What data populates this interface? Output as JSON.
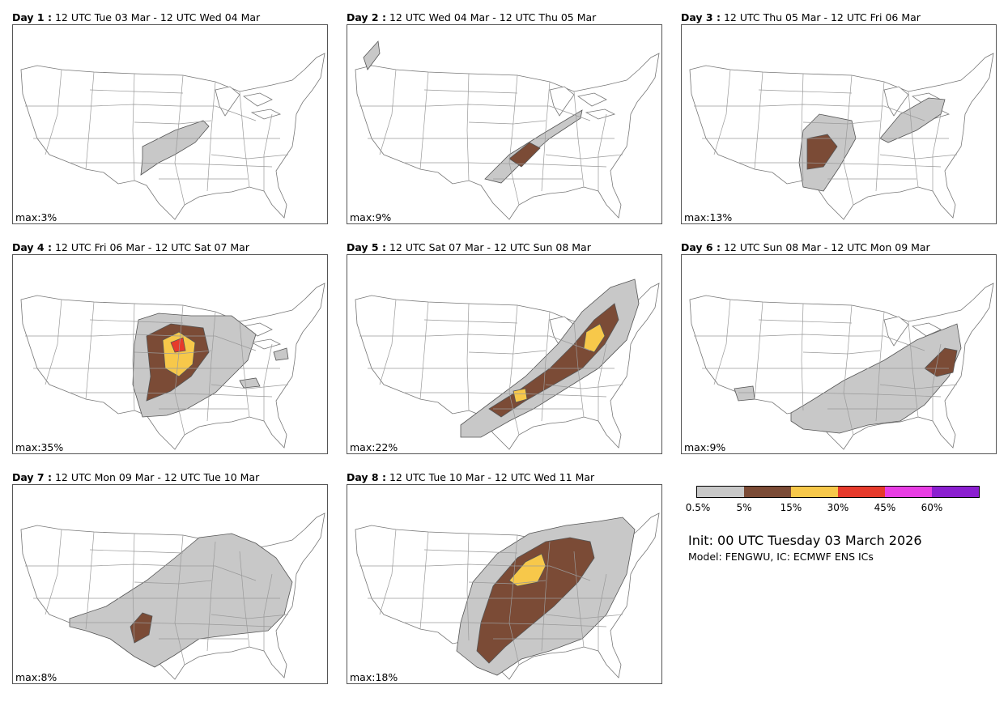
{
  "colors": {
    "c05": "#c8c8c8",
    "c5": "#7b4b36",
    "c15": "#f7c84a",
    "c30": "#e63a2b",
    "c45": "#e83de3",
    "c60": "#8b1fd0"
  },
  "panels": [
    {
      "day": "Day 1 :",
      "period": "12 UTC Tue 03 Mar - 12 UTC Wed 04 Mar",
      "max": "max:3%",
      "max_value": 3
    },
    {
      "day": "Day 2 :",
      "period": "12 UTC Wed 04 Mar - 12 UTC Thu 05 Mar",
      "max": "max:9%",
      "max_value": 9
    },
    {
      "day": "Day 3 :",
      "period": "12 UTC Thu 05 Mar - 12 UTC Fri 06 Mar",
      "max": "max:13%",
      "max_value": 13
    },
    {
      "day": "Day 4 :",
      "period": "12 UTC Fri 06 Mar - 12 UTC Sat 07 Mar",
      "max": "max:35%",
      "max_value": 35
    },
    {
      "day": "Day 5 :",
      "period": "12 UTC Sat 07 Mar - 12 UTC Sun 08 Mar",
      "max": "max:22%",
      "max_value": 22
    },
    {
      "day": "Day 6 :",
      "period": "12 UTC Sun 08 Mar - 12 UTC Mon 09 Mar",
      "max": "max:9%",
      "max_value": 9
    },
    {
      "day": "Day 7 :",
      "period": "12 UTC Mon 09 Mar - 12 UTC Tue 10 Mar",
      "max": "max:8%",
      "max_value": 8
    },
    {
      "day": "Day 8 :",
      "period": "12 UTC Tue 10 Mar - 12 UTC Wed 11 Mar",
      "max": "max:18%",
      "max_value": 18
    }
  ],
  "legend": {
    "ticks": [
      "0.5%",
      "5%",
      "15%",
      "30%",
      "45%",
      "60%"
    ]
  },
  "init": "Init: 00 UTC Tuesday 03 March 2026",
  "model": "Model: FENGWU, IC: ECMWF ENS ICs"
}
